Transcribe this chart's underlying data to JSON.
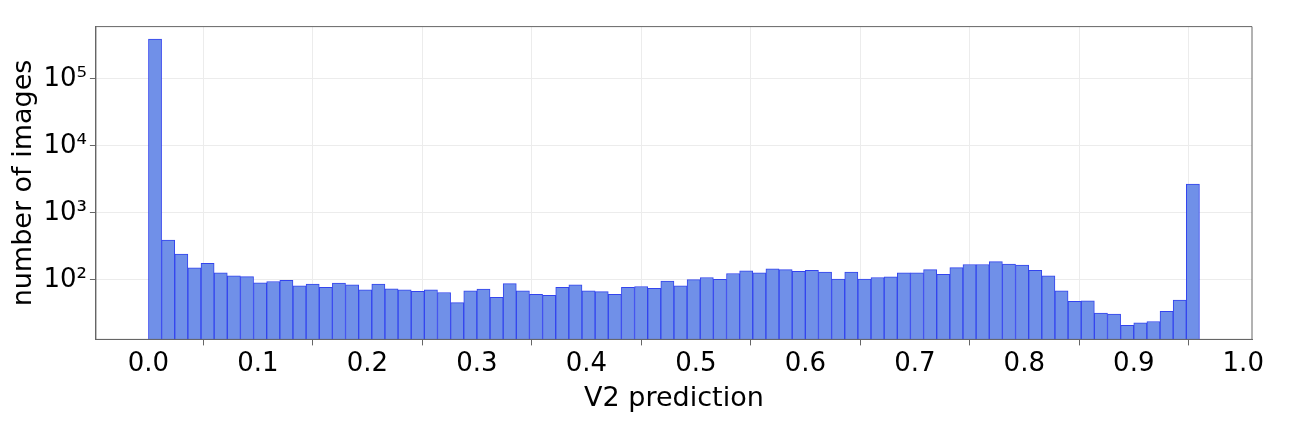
{
  "chart_data": {
    "type": "histogram",
    "xlabel": "V2 prediction",
    "ylabel": "number of images",
    "bins": [
      0,
      0.012,
      0.024,
      0.036,
      0.048,
      0.06,
      0.072,
      0.084,
      0.096,
      0.108,
      0.12,
      0.132,
      0.144,
      0.156,
      0.168,
      0.18,
      0.192,
      0.204,
      0.216,
      0.228,
      0.24,
      0.252,
      0.264,
      0.276,
      0.288,
      0.3,
      0.312,
      0.324,
      0.336,
      0.348,
      0.36,
      0.372,
      0.384,
      0.396,
      0.408,
      0.42,
      0.432,
      0.444,
      0.456,
      0.468,
      0.48,
      0.492,
      0.504,
      0.516,
      0.528,
      0.54,
      0.552,
      0.564,
      0.576,
      0.588,
      0.6,
      0.612,
      0.624,
      0.636,
      0.648,
      0.66,
      0.672,
      0.684,
      0.696,
      0.708,
      0.72,
      0.732,
      0.744,
      0.756,
      0.768,
      0.78,
      0.792,
      0.804,
      0.816,
      0.828,
      0.84,
      0.852,
      0.864,
      0.876,
      0.888,
      0.9,
      0.912,
      0.924,
      0.936,
      0.948,
      0.96
    ],
    "values": [
      390000,
      393,
      243,
      152,
      177,
      128,
      115,
      112,
      91,
      95,
      99,
      82,
      87,
      78,
      90,
      85,
      71,
      87,
      74,
      71,
      68,
      71,
      65,
      46,
      69,
      73,
      55,
      88,
      69,
      61,
      59,
      78,
      85,
      69,
      67,
      61,
      78,
      80,
      75,
      96,
      82,
      101,
      109,
      102,
      125,
      137,
      128,
      147,
      143,
      135,
      139,
      131,
      103,
      131,
      103,
      109,
      111,
      128,
      128,
      143,
      121,
      153,
      170,
      170,
      188,
      172,
      167,
      139,
      115,
      69,
      48,
      49,
      32,
      31,
      21,
      23,
      24,
      34,
      50,
      2690
    ],
    "color": "#7090e8",
    "xlim": [
      -0.048,
      1.008
    ],
    "xticks": [
      {
        "value": 0,
        "label": "0.0"
      },
      0.1,
      0.2,
      0.3,
      0.4,
      0.5,
      0.6,
      0.7,
      0.8,
      0.9,
      {
        "value": 1,
        "label": "1.0"
      }
    ],
    "log": true,
    "ylim": [
      13,
      600000
    ],
    "yticks": [
      {
        "value": 100,
        "label": "10²"
      },
      {
        "value": 1000,
        "label": "10³"
      },
      {
        "value": 10000,
        "label": "10⁴"
      },
      {
        "value": 100000,
        "label": "10⁵"
      }
    ],
    "grid": true,
    "legend": false
  }
}
